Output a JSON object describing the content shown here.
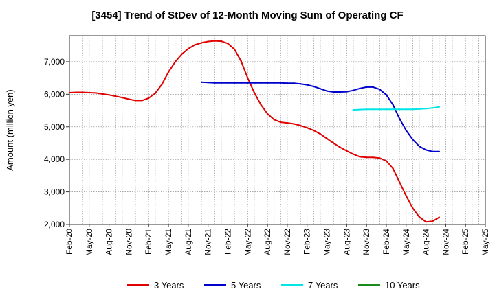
{
  "chart_data": {
    "type": "line",
    "title": "[3454]  Trend of StDev of 12-Month Moving Sum of Operating CF",
    "xlabel": "",
    "ylabel": "Amount (million yen)",
    "ylim": [
      2000,
      7800
    ],
    "y_ticks": [
      2000,
      3000,
      4000,
      5000,
      6000,
      7000
    ],
    "y_tick_labels": [
      "2,000",
      "3,000",
      "4,000",
      "5,000",
      "6,000",
      "7,000"
    ],
    "x_start": "2020-02",
    "x_end": "2025-05",
    "x_tick_labels": [
      "Feb-20",
      "May-20",
      "Aug-20",
      "Nov-20",
      "Feb-21",
      "May-21",
      "Aug-21",
      "Nov-21",
      "Feb-22",
      "May-22",
      "Aug-22",
      "Nov-22",
      "Feb-23",
      "May-23",
      "Aug-23",
      "Nov-23",
      "Feb-24",
      "May-24",
      "Aug-24",
      "Nov-24",
      "Feb-25",
      "May-25"
    ],
    "grid": true,
    "legend_position": "bottom",
    "series": [
      {
        "name": "3 Years",
        "color": "#e00000",
        "points": [
          [
            "2020-02",
            6050
          ],
          [
            "2020-03",
            6060
          ],
          [
            "2020-04",
            6060
          ],
          [
            "2020-05",
            6050
          ],
          [
            "2020-06",
            6040
          ],
          [
            "2020-07",
            6010
          ],
          [
            "2020-08",
            5980
          ],
          [
            "2020-09",
            5940
          ],
          [
            "2020-10",
            5900
          ],
          [
            "2020-11",
            5850
          ],
          [
            "2020-12",
            5810
          ],
          [
            "2021-01",
            5810
          ],
          [
            "2021-02",
            5880
          ],
          [
            "2021-03",
            6030
          ],
          [
            "2021-04",
            6300
          ],
          [
            "2021-05",
            6680
          ],
          [
            "2021-06",
            6990
          ],
          [
            "2021-07",
            7230
          ],
          [
            "2021-08",
            7400
          ],
          [
            "2021-09",
            7520
          ],
          [
            "2021-10",
            7580
          ],
          [
            "2021-11",
            7620
          ],
          [
            "2021-12",
            7640
          ],
          [
            "2022-01",
            7630
          ],
          [
            "2022-02",
            7560
          ],
          [
            "2022-03",
            7380
          ],
          [
            "2022-04",
            7020
          ],
          [
            "2022-05",
            6500
          ],
          [
            "2022-06",
            6050
          ],
          [
            "2022-07",
            5680
          ],
          [
            "2022-08",
            5400
          ],
          [
            "2022-09",
            5220
          ],
          [
            "2022-10",
            5140
          ],
          [
            "2022-11",
            5120
          ],
          [
            "2022-12",
            5090
          ],
          [
            "2023-01",
            5040
          ],
          [
            "2023-02",
            4970
          ],
          [
            "2023-03",
            4890
          ],
          [
            "2023-04",
            4780
          ],
          [
            "2023-05",
            4640
          ],
          [
            "2023-06",
            4500
          ],
          [
            "2023-07",
            4370
          ],
          [
            "2023-08",
            4260
          ],
          [
            "2023-09",
            4160
          ],
          [
            "2023-10",
            4080
          ],
          [
            "2023-11",
            4060
          ],
          [
            "2023-12",
            4060
          ],
          [
            "2024-01",
            4040
          ],
          [
            "2024-02",
            3950
          ],
          [
            "2024-03",
            3720
          ],
          [
            "2024-04",
            3300
          ],
          [
            "2024-05",
            2880
          ],
          [
            "2024-06",
            2500
          ],
          [
            "2024-07",
            2230
          ],
          [
            "2024-08",
            2080
          ],
          [
            "2024-09",
            2100
          ],
          [
            "2024-10",
            2220
          ]
        ]
      },
      {
        "name": "5 Years",
        "color": "#0000cc",
        "points": [
          [
            "2021-10",
            6370
          ],
          [
            "2021-11",
            6360
          ],
          [
            "2021-12",
            6350
          ],
          [
            "2022-01",
            6350
          ],
          [
            "2022-02",
            6350
          ],
          [
            "2022-03",
            6350
          ],
          [
            "2022-04",
            6350
          ],
          [
            "2022-05",
            6350
          ],
          [
            "2022-06",
            6350
          ],
          [
            "2022-07",
            6350
          ],
          [
            "2022-08",
            6350
          ],
          [
            "2022-09",
            6350
          ],
          [
            "2022-10",
            6350
          ],
          [
            "2022-11",
            6340
          ],
          [
            "2022-12",
            6340
          ],
          [
            "2023-01",
            6320
          ],
          [
            "2023-02",
            6290
          ],
          [
            "2023-03",
            6240
          ],
          [
            "2023-04",
            6170
          ],
          [
            "2023-05",
            6100
          ],
          [
            "2023-06",
            6070
          ],
          [
            "2023-07",
            6070
          ],
          [
            "2023-08",
            6080
          ],
          [
            "2023-09",
            6120
          ],
          [
            "2023-10",
            6180
          ],
          [
            "2023-11",
            6220
          ],
          [
            "2023-12",
            6220
          ],
          [
            "2024-01",
            6150
          ],
          [
            "2024-02",
            5980
          ],
          [
            "2024-03",
            5680
          ],
          [
            "2024-04",
            5250
          ],
          [
            "2024-05",
            4890
          ],
          [
            "2024-06",
            4610
          ],
          [
            "2024-07",
            4400
          ],
          [
            "2024-08",
            4290
          ],
          [
            "2024-09",
            4240
          ],
          [
            "2024-10",
            4240
          ]
        ]
      },
      {
        "name": "7 Years",
        "color": "#00e5e5",
        "points": [
          [
            "2023-09",
            5520
          ],
          [
            "2023-10",
            5530
          ],
          [
            "2023-11",
            5540
          ],
          [
            "2023-12",
            5540
          ],
          [
            "2024-01",
            5540
          ],
          [
            "2024-02",
            5540
          ],
          [
            "2024-03",
            5540
          ],
          [
            "2024-04",
            5540
          ],
          [
            "2024-05",
            5540
          ],
          [
            "2024-06",
            5540
          ],
          [
            "2024-07",
            5550
          ],
          [
            "2024-08",
            5560
          ],
          [
            "2024-09",
            5580
          ],
          [
            "2024-10",
            5610
          ]
        ]
      },
      {
        "name": "10 Years",
        "color": "#1a8a1a",
        "points": []
      }
    ]
  }
}
